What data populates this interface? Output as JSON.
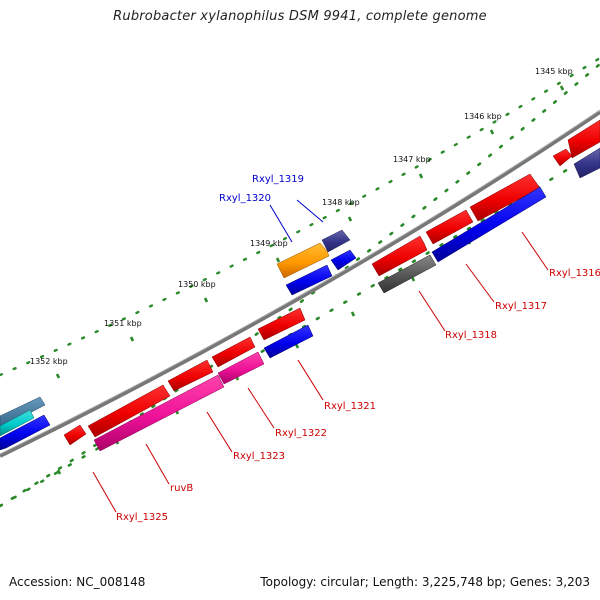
{
  "title": "Rubrobacter xylanophilus DSM 9941, complete genome",
  "footer": {
    "accession": "Accession: NC_008148",
    "topology": "Topology: circular; Length: 3,225,748 bp; Genes: 3,203"
  },
  "ruler": [
    {
      "label": "1345 kbp"
    },
    {
      "label": "1346 kbp"
    },
    {
      "label": "1347 kbp"
    },
    {
      "label": "1348 kbp"
    },
    {
      "label": "1349 kbp"
    },
    {
      "label": "1350 kbp"
    },
    {
      "label": "1351 kbp"
    },
    {
      "label": "1352 kbp"
    }
  ],
  "genes": [
    {
      "id": "Rxyl_1316",
      "label": "Rxyl_1316",
      "color": "#cc0000"
    },
    {
      "id": "Rxyl_1317",
      "label": "Rxyl_1317",
      "color": "#cc0000"
    },
    {
      "id": "Rxyl_1318",
      "label": "Rxyl_1318",
      "color": "#cc0000"
    },
    {
      "id": "Rxyl_1319",
      "label": "Rxyl_1319",
      "color": "#0000cc"
    },
    {
      "id": "Rxyl_1320",
      "label": "Rxyl_1320",
      "color": "#0000cc"
    },
    {
      "id": "Rxyl_1321",
      "label": "Rxyl_1321",
      "color": "#cc0000"
    },
    {
      "id": "Rxyl_1322",
      "label": "Rxyl_1322",
      "color": "#cc0000"
    },
    {
      "id": "Rxyl_1323",
      "label": "Rxyl_1323",
      "color": "#cc0000"
    },
    {
      "id": "ruvB",
      "label": "ruvB",
      "color": "#cc0000"
    },
    {
      "id": "Rxyl_1325",
      "label": "Rxyl_1325",
      "color": "#cc0000"
    }
  ],
  "colors": {
    "red": "#ff0000",
    "blue": "#0000ee",
    "magenta": "#ee1199",
    "navy": "#333388",
    "orange": "#ff9900",
    "gray": "#555555",
    "teal": "#00cccc",
    "backbone": "#777777",
    "ruler_dots": "#2a8a2a"
  }
}
